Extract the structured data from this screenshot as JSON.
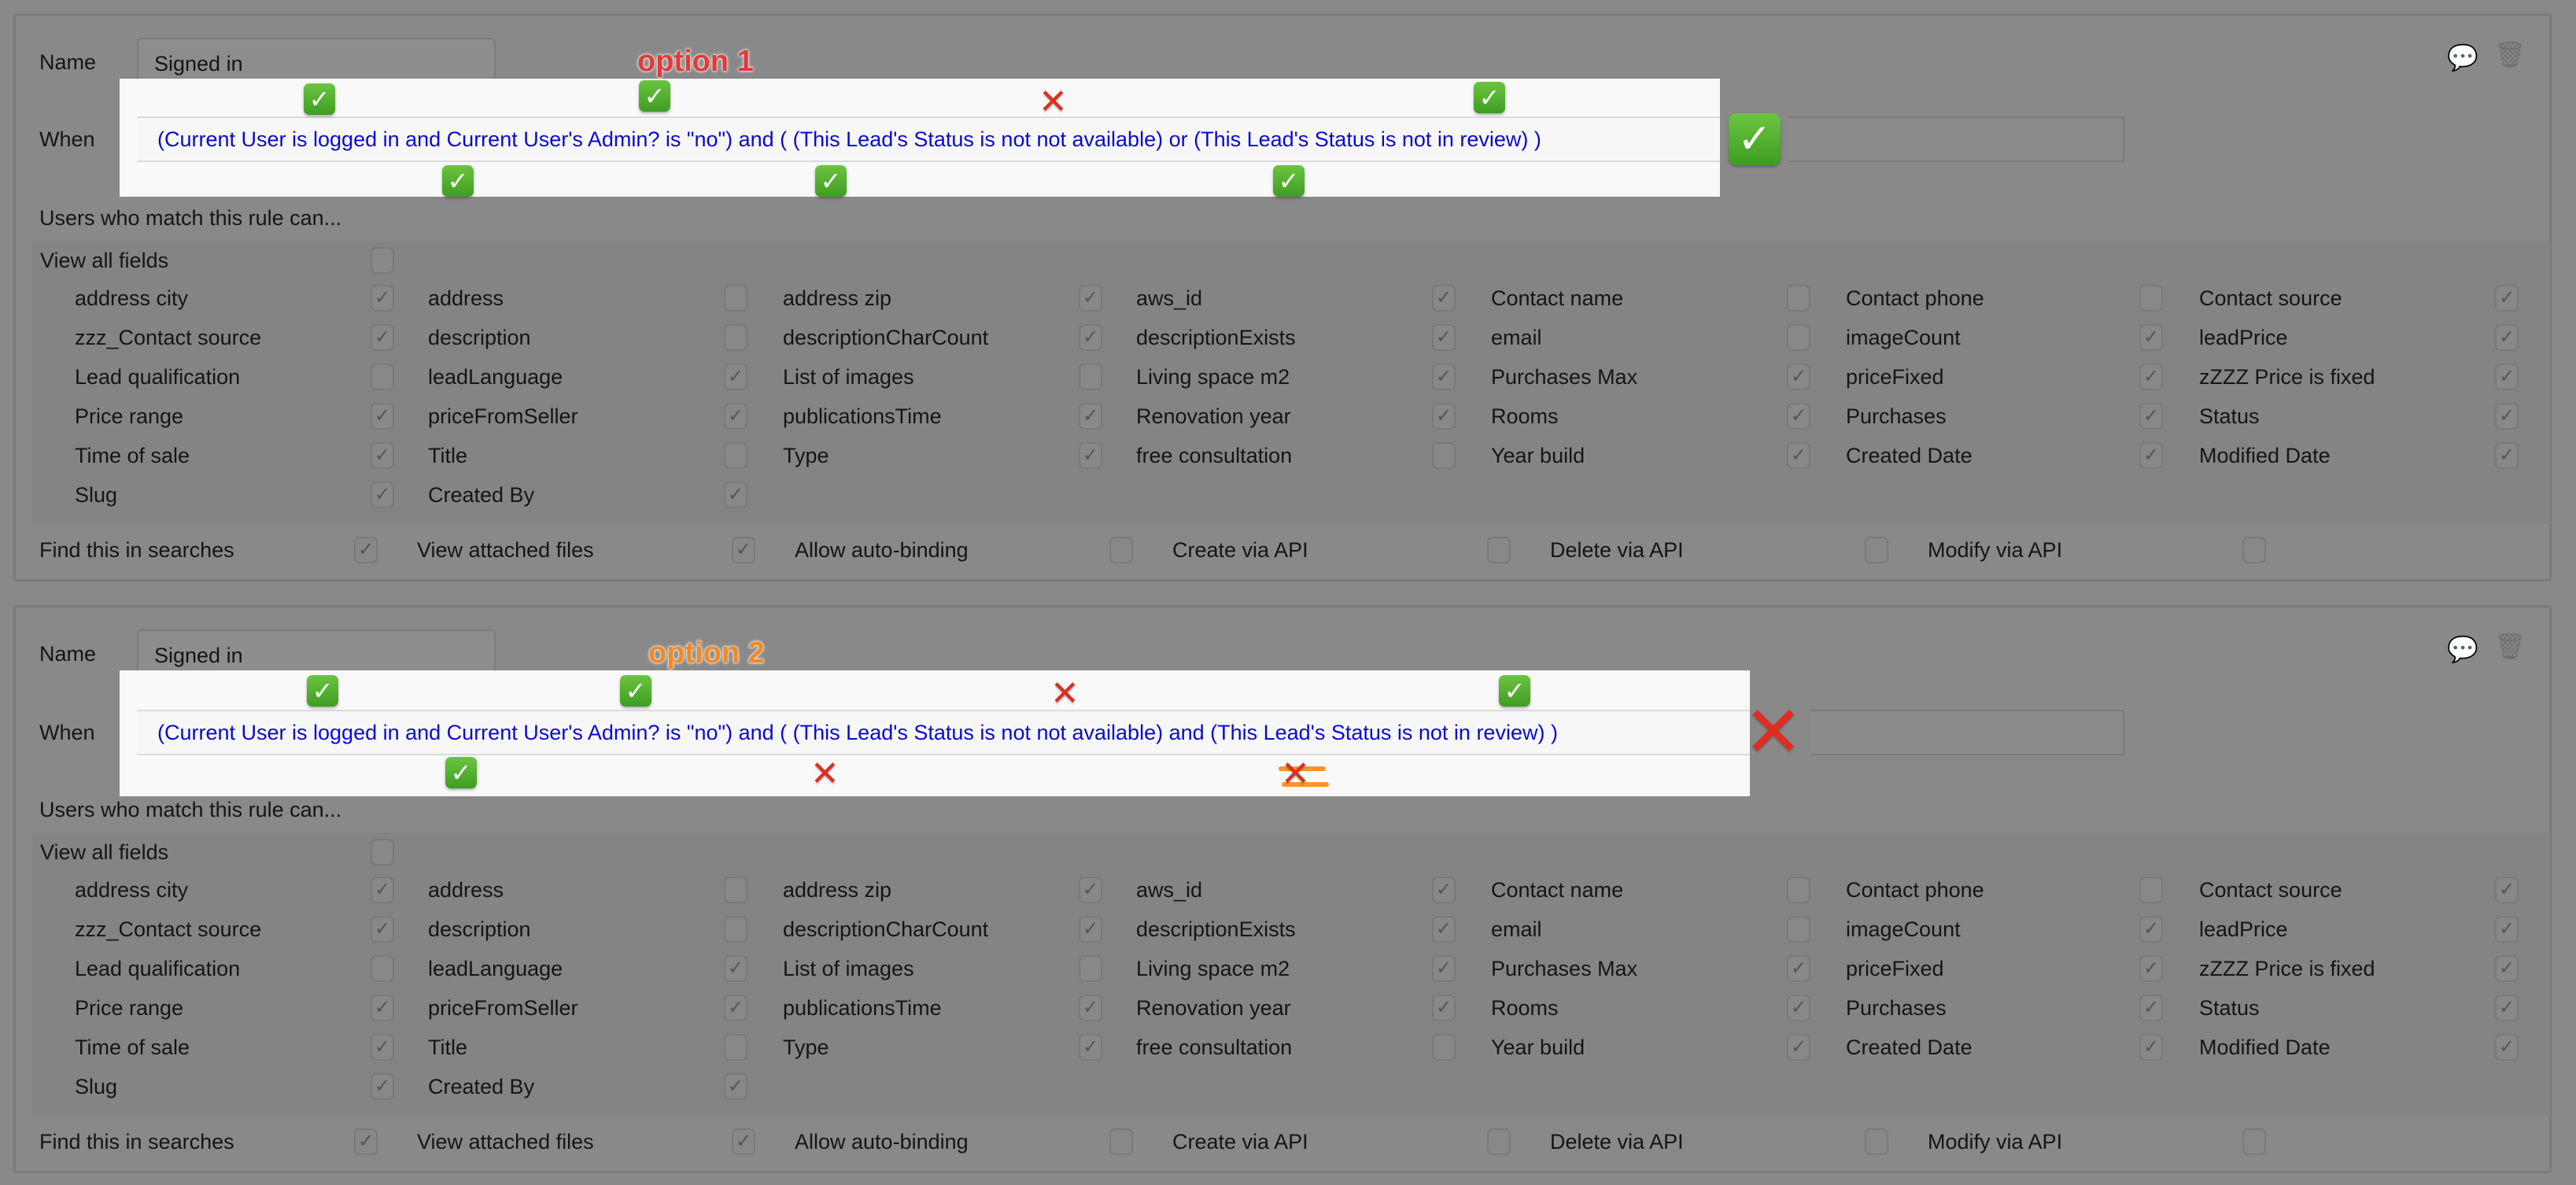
{
  "labels": {
    "name": "Name",
    "when": "When",
    "users_match": "Users who match this rule can...",
    "view_all_fields": "View all fields"
  },
  "colors": {
    "expression_text": "#0a0ad0",
    "check_green": "#4caf2c",
    "cross_red": "#de2e22",
    "option1": "#e23a3a",
    "option2": "#f08a24"
  },
  "panels": [
    {
      "name_value": "Signed in",
      "annotation": "option 1",
      "expression": "(Current User is logged in and Current User's Admin? is \"no\")  and  ( (This Lead's Status is not not available)  or  (This Lead's Status is not in review) )",
      "view_all_fields": false,
      "verdict": "check"
    },
    {
      "name_value": "Signed in",
      "annotation": "option 2",
      "expression": "(Current User is logged in and Current User's Admin? is \"no\")  and  ( (This Lead's Status is not not available)  and  (This Lead's Status is not in review) )",
      "view_all_fields": false,
      "verdict": "cross"
    }
  ],
  "fields": [
    [
      {
        "label": "address city",
        "checked": true
      },
      {
        "label": "address",
        "checked": false
      },
      {
        "label": "address zip",
        "checked": true
      },
      {
        "label": "aws_id",
        "checked": true
      },
      {
        "label": "Contact name",
        "checked": false
      },
      {
        "label": "Contact phone",
        "checked": false
      },
      {
        "label": "Contact source",
        "checked": true
      }
    ],
    [
      {
        "label": "zzz_Contact source",
        "checked": true
      },
      {
        "label": "description",
        "checked": false
      },
      {
        "label": "descriptionCharCount",
        "checked": true
      },
      {
        "label": "descriptionExists",
        "checked": true
      },
      {
        "label": "email",
        "checked": false
      },
      {
        "label": "imageCount",
        "checked": true
      },
      {
        "label": "leadPrice",
        "checked": true
      }
    ],
    [
      {
        "label": "Lead qualification",
        "checked": false
      },
      {
        "label": "leadLanguage",
        "checked": true
      },
      {
        "label": "List of images",
        "checked": false
      },
      {
        "label": "Living space m2",
        "checked": true
      },
      {
        "label": "Purchases Max",
        "checked": true
      },
      {
        "label": "priceFixed",
        "checked": true
      },
      {
        "label": "zZZZ Price is fixed",
        "checked": true
      }
    ],
    [
      {
        "label": "Price range",
        "checked": true
      },
      {
        "label": "priceFromSeller",
        "checked": true
      },
      {
        "label": "publicationsTime",
        "checked": true
      },
      {
        "label": "Renovation year",
        "checked": true
      },
      {
        "label": "Rooms",
        "checked": true
      },
      {
        "label": "Purchases",
        "checked": true
      },
      {
        "label": "Status",
        "checked": true
      }
    ],
    [
      {
        "label": "Time of sale",
        "checked": true
      },
      {
        "label": "Title",
        "checked": false
      },
      {
        "label": "Type",
        "checked": true
      },
      {
        "label": "free consultation",
        "checked": false
      },
      {
        "label": "Year build",
        "checked": true
      },
      {
        "label": "Created Date",
        "checked": true
      },
      {
        "label": "Modified Date",
        "checked": true
      }
    ],
    [
      {
        "label": "Slug",
        "checked": true
      },
      {
        "label": "Created By",
        "checked": true
      }
    ]
  ],
  "permissions": [
    {
      "label": "Find this in searches",
      "checked": true
    },
    {
      "label": "View attached files",
      "checked": true
    },
    {
      "label": "Allow auto-binding",
      "checked": false
    },
    {
      "label": "Create via API",
      "checked": false
    },
    {
      "label": "Delete via API",
      "checked": false
    },
    {
      "label": "Modify via API",
      "checked": false
    }
  ],
  "icons": {
    "comment": "comment-icon",
    "trash": "trash-icon",
    "check": "check-mark-icon",
    "cross": "cross-mark-icon"
  }
}
